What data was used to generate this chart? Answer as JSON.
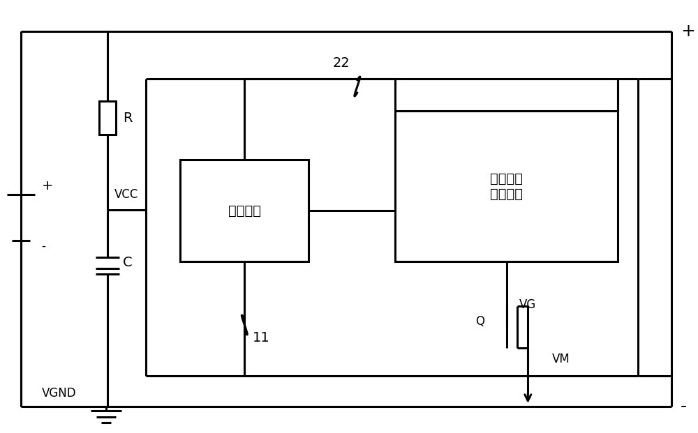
{
  "bg_color": "#ffffff",
  "lc": "#000000",
  "lw": 2.2,
  "box1_label": "保护电路",
  "box2_label": "栊极衬底\n控制电路",
  "label_R": "R",
  "label_C": "C",
  "label_VCC": "VCC",
  "label_VGND": "VGND",
  "label_VG": "VG",
  "label_VM": "VM",
  "label_Q": "Q",
  "label_11": "11",
  "label_22": "22",
  "label_plus": "+",
  "label_minus": "-",
  "fs": 14,
  "fs_sm": 12,
  "fs_large": 18
}
